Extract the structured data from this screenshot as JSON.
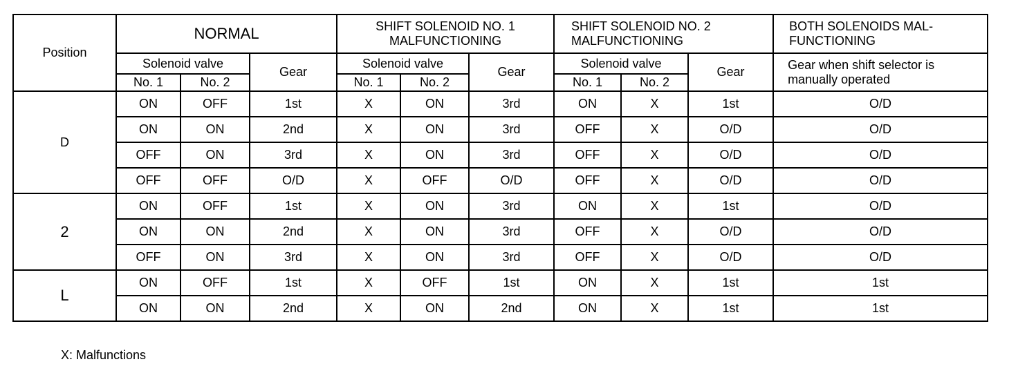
{
  "headers": {
    "position": "Position",
    "normal": "NORMAL",
    "sol1": "SHIFT SOLENOID NO. 1 MALFUNCTIONING",
    "sol2": "SHIFT SOLENOID NO. 2 MALFUNCTIONING",
    "both": "BOTH SOLENOIDS MAL-FUNCTIONING",
    "solenoid_valve": "Solenoid valve",
    "gear": "Gear",
    "no1": "No. 1",
    "no2": "No. 2",
    "both_gear": "Gear when shift selector is manually operated"
  },
  "groups": [
    {
      "position": "D",
      "rows": [
        [
          "ON",
          "OFF",
          "1st",
          "X",
          "ON",
          "3rd",
          "ON",
          "X",
          "1st",
          "O/D"
        ],
        [
          "ON",
          "ON",
          "2nd",
          "X",
          "ON",
          "3rd",
          "OFF",
          "X",
          "O/D",
          "O/D"
        ],
        [
          "OFF",
          "ON",
          "3rd",
          "X",
          "ON",
          "3rd",
          "OFF",
          "X",
          "O/D",
          "O/D"
        ],
        [
          "OFF",
          "OFF",
          "O/D",
          "X",
          "OFF",
          "O/D",
          "OFF",
          "X",
          "O/D",
          "O/D"
        ]
      ]
    },
    {
      "position": "2",
      "rows": [
        [
          "ON",
          "OFF",
          "1st",
          "X",
          "ON",
          "3rd",
          "ON",
          "X",
          "1st",
          "O/D"
        ],
        [
          "ON",
          "ON",
          "2nd",
          "X",
          "ON",
          "3rd",
          "OFF",
          "X",
          "O/D",
          "O/D"
        ],
        [
          "OFF",
          "ON",
          "3rd",
          "X",
          "ON",
          "3rd",
          "OFF",
          "X",
          "O/D",
          "O/D"
        ]
      ]
    },
    {
      "position": "L",
      "rows": [
        [
          "ON",
          "OFF",
          "1st",
          "X",
          "OFF",
          "1st",
          "ON",
          "X",
          "1st",
          "1st"
        ],
        [
          "ON",
          "ON",
          "2nd",
          "X",
          "ON",
          "2nd",
          "ON",
          "X",
          "1st",
          "1st"
        ]
      ]
    }
  ],
  "note": "X: Malfunctions"
}
